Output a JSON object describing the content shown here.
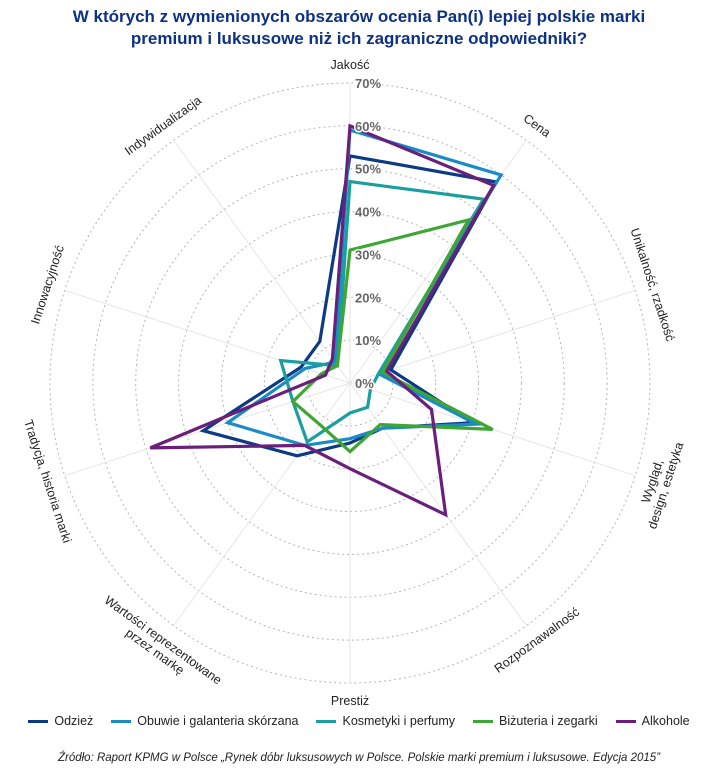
{
  "chart_data": {
    "type": "radar",
    "title": [
      "W których z wymienionych obszarów ocenia Pan(i) lepiej polskie marki",
      "premium i luksusowe niż ich zagraniczne odpowiedniki?"
    ],
    "axes": [
      [
        "Jakość"
      ],
      [
        "Cena"
      ],
      [
        "Unikalność, rzadkość"
      ],
      [
        "Wygląd,",
        "design, estetyka"
      ],
      [
        "Rozpoznawalność"
      ],
      [
        "Prestiż"
      ],
      [
        "Wartości reprezentowane",
        "przez markę"
      ],
      [
        "Tradycja, historia marki"
      ],
      [
        "Innowacyjność"
      ],
      [
        "Indywidualizacja"
      ]
    ],
    "ticks": [
      "0%",
      "10%",
      "20%",
      "30%",
      "40%",
      "50%",
      "60%",
      "70%"
    ],
    "r_range": [
      0,
      70
    ],
    "series": [
      {
        "name": "Odzież",
        "color": "#0d3a85",
        "values": [
          53,
          58,
          10,
          30,
          13,
          14,
          21,
          36,
          12,
          12
        ]
      },
      {
        "name": "Obuwie i galanteria skórzana",
        "color": "#1a8cc4",
        "values": [
          59,
          60,
          7,
          31,
          13,
          13,
          18,
          30,
          11,
          6
        ]
      },
      {
        "name": "Kosmetyki i perfumy",
        "color": "#1a9e9e",
        "values": [
          47,
          53,
          7,
          5,
          7,
          7,
          17,
          14,
          17,
          5
        ]
      },
      {
        "name": "Biżuteria i zegarki",
        "color": "#3fa535",
        "values": [
          31,
          47,
          8,
          35,
          12,
          16,
          12,
          14,
          7,
          5
        ]
      },
      {
        "name": "Alkohole",
        "color": "#6a1f7a",
        "values": [
          60,
          57,
          9,
          20,
          38,
          20,
          18,
          49,
          6,
          7
        ]
      }
    ]
  },
  "source": "Źródło: Raport KPMG w Polsce „Rynek dóbr luksusowych w Polsce. Polskie marki premium i luksusowe. Edycja 2015”"
}
